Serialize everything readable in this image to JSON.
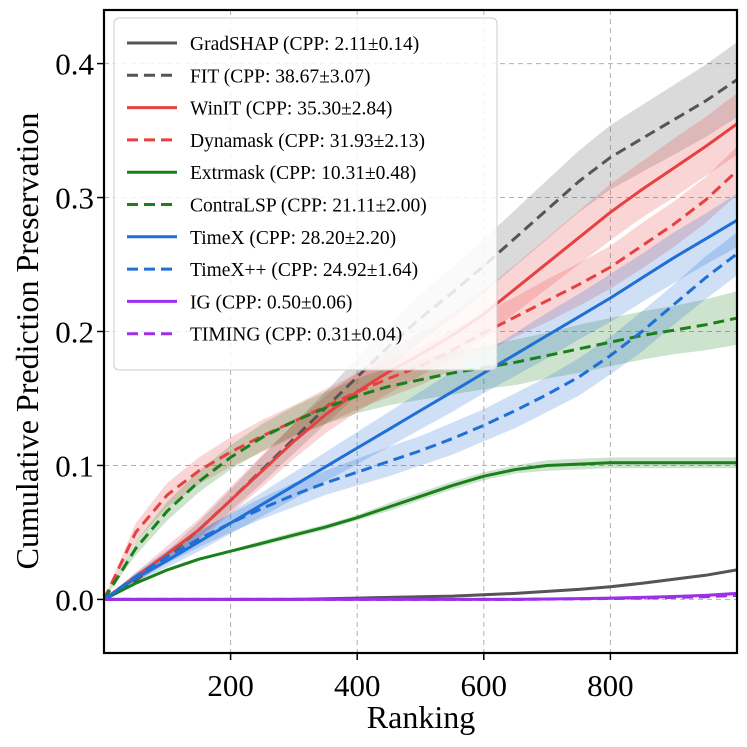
{
  "chart_data": {
    "type": "line",
    "title": "",
    "xlabel": "Ranking",
    "ylabel": "Cumulative Prediction Preservation",
    "xlim": [
      0,
      1000
    ],
    "ylim": [
      -0.04,
      0.44
    ],
    "xticks": [
      200,
      400,
      600,
      800
    ],
    "xtick_labels": [
      "200",
      "400",
      "600",
      "800"
    ],
    "yticks": [
      0.0,
      0.1,
      0.2,
      0.3,
      0.4
    ],
    "ytick_labels": [
      "0.0",
      "0.1",
      "0.2",
      "0.3",
      "0.4"
    ],
    "grid": true,
    "legend_position": "top-left",
    "x": [
      0,
      50,
      100,
      150,
      200,
      250,
      300,
      350,
      400,
      450,
      500,
      550,
      600,
      650,
      700,
      750,
      800,
      850,
      900,
      950,
      1000
    ],
    "series": [
      {
        "name": "GradSHAP (CPP: 2.11±0.14)",
        "color": "#555555",
        "dash": "solid",
        "values": [
          0.0,
          0.0,
          0.0,
          0.0,
          0.0,
          0.0,
          0.0,
          0.0005,
          0.001,
          0.0015,
          0.002,
          0.0025,
          0.0035,
          0.0045,
          0.006,
          0.0075,
          0.0095,
          0.012,
          0.015,
          0.018,
          0.022
        ],
        "band": [
          0.0,
          0.0,
          0.0,
          0.0,
          0.0,
          0.0,
          0.0,
          0.0,
          0.0,
          0.0,
          0.0,
          0.0005,
          0.0005,
          0.0005,
          0.0005,
          0.001,
          0.001,
          0.001,
          0.001,
          0.001,
          0.001
        ]
      },
      {
        "name": "FIT (CPP: 38.67±3.07)",
        "color": "#555555",
        "dash": "dashed",
        "values": [
          0.0,
          0.014,
          0.032,
          0.052,
          0.074,
          0.097,
          0.12,
          0.143,
          0.166,
          0.189,
          0.21,
          0.229,
          0.249,
          0.27,
          0.291,
          0.312,
          0.33,
          0.344,
          0.358,
          0.372,
          0.388
        ],
        "band": [
          0.0,
          0.002,
          0.004,
          0.006,
          0.008,
          0.01,
          0.011,
          0.012,
          0.014,
          0.016,
          0.018,
          0.019,
          0.02,
          0.021,
          0.022,
          0.023,
          0.024,
          0.025,
          0.026,
          0.027,
          0.028
        ]
      },
      {
        "name": "WinIT (CPP: 35.30±2.84)",
        "color": "#e84040",
        "dash": "solid",
        "values": [
          0.0,
          0.017,
          0.034,
          0.052,
          0.074,
          0.096,
          0.118,
          0.138,
          0.155,
          0.17,
          0.183,
          0.197,
          0.213,
          0.232,
          0.251,
          0.27,
          0.289,
          0.306,
          0.322,
          0.338,
          0.355
        ],
        "band": [
          0.0,
          0.003,
          0.006,
          0.008,
          0.01,
          0.012,
          0.013,
          0.014,
          0.015,
          0.016,
          0.016,
          0.017,
          0.018,
          0.018,
          0.019,
          0.02,
          0.021,
          0.021,
          0.022,
          0.022,
          0.023
        ]
      },
      {
        "name": "Dynamask (CPP: 31.93±2.13)",
        "color": "#e84040",
        "dash": "dashed",
        "values": [
          0.0,
          0.05,
          0.078,
          0.096,
          0.11,
          0.122,
          0.133,
          0.144,
          0.155,
          0.165,
          0.174,
          0.186,
          0.199,
          0.211,
          0.223,
          0.235,
          0.248,
          0.264,
          0.28,
          0.298,
          0.32
        ],
        "band": [
          0.0,
          0.007,
          0.009,
          0.01,
          0.011,
          0.012,
          0.012,
          0.013,
          0.013,
          0.014,
          0.014,
          0.015,
          0.015,
          0.015,
          0.016,
          0.016,
          0.016,
          0.017,
          0.017,
          0.017,
          0.018
        ]
      },
      {
        "name": "Extrmask (CPP: 10.31±0.48)",
        "color": "#1b7f1b",
        "dash": "solid",
        "values": [
          0.0,
          0.012,
          0.022,
          0.03,
          0.036,
          0.042,
          0.048,
          0.054,
          0.061,
          0.069,
          0.077,
          0.085,
          0.092,
          0.097,
          0.1,
          0.101,
          0.102,
          0.102,
          0.102,
          0.102,
          0.102
        ],
        "band": [
          0.0,
          0.001,
          0.001,
          0.001,
          0.001,
          0.002,
          0.002,
          0.002,
          0.002,
          0.003,
          0.003,
          0.003,
          0.003,
          0.003,
          0.004,
          0.004,
          0.004,
          0.004,
          0.004,
          0.004,
          0.004
        ]
      },
      {
        "name": "ContraLSP (CPP: 21.11±2.00)",
        "color": "#1b7f1b",
        "dash": "dashed",
        "values": [
          0.0,
          0.038,
          0.066,
          0.088,
          0.106,
          0.121,
          0.133,
          0.143,
          0.152,
          0.159,
          0.164,
          0.169,
          0.173,
          0.177,
          0.182,
          0.187,
          0.192,
          0.197,
          0.201,
          0.205,
          0.21
        ],
        "band": [
          0.0,
          0.005,
          0.007,
          0.008,
          0.009,
          0.01,
          0.011,
          0.012,
          0.013,
          0.014,
          0.015,
          0.016,
          0.016,
          0.017,
          0.017,
          0.018,
          0.018,
          0.018,
          0.018,
          0.019,
          0.02
        ]
      },
      {
        "name": "TimeX (CPP: 28.20±2.20)",
        "color": "#1f6fd6",
        "dash": "solid",
        "values": [
          0.0,
          0.016,
          0.029,
          0.043,
          0.057,
          0.071,
          0.085,
          0.099,
          0.113,
          0.127,
          0.141,
          0.155,
          0.169,
          0.183,
          0.197,
          0.211,
          0.225,
          0.24,
          0.255,
          0.269,
          0.283
        ],
        "band": [
          0.0,
          0.003,
          0.005,
          0.007,
          0.008,
          0.009,
          0.01,
          0.011,
          0.012,
          0.013,
          0.014,
          0.015,
          0.015,
          0.016,
          0.017,
          0.017,
          0.018,
          0.018,
          0.019,
          0.019,
          0.02
        ]
      },
      {
        "name": "TimeX++ (CPP: 24.92±1.64)",
        "color": "#1f6fd6",
        "dash": "dashed",
        "values": [
          0.0,
          0.017,
          0.032,
          0.045,
          0.057,
          0.068,
          0.078,
          0.087,
          0.095,
          0.103,
          0.111,
          0.12,
          0.13,
          0.141,
          0.153,
          0.166,
          0.182,
          0.2,
          0.22,
          0.24,
          0.258
        ],
        "band": [
          0.0,
          0.003,
          0.005,
          0.006,
          0.007,
          0.008,
          0.009,
          0.009,
          0.01,
          0.011,
          0.011,
          0.012,
          0.012,
          0.013,
          0.013,
          0.014,
          0.014,
          0.015,
          0.015,
          0.016,
          0.016
        ]
      },
      {
        "name": "IG (CPP: 0.50±0.06)",
        "color": "#9b30e8",
        "dash": "solid",
        "values": [
          0.0,
          0.0,
          0.0,
          0.0,
          0.0,
          0.0,
          0.0,
          0.0,
          0.0,
          0.0,
          0.0,
          0.0,
          0.0,
          0.0,
          0.0003,
          0.0006,
          0.001,
          0.0015,
          0.0022,
          0.003,
          0.0045
        ],
        "band": [
          0.0,
          0.0,
          0.0,
          0.0,
          0.0,
          0.0,
          0.0,
          0.0,
          0.0,
          0.0,
          0.0,
          0.0,
          0.0,
          0.0,
          0.0,
          0.0,
          0.0,
          0.0003,
          0.0003,
          0.0004,
          0.0005
        ]
      },
      {
        "name": "TIMING (CPP: 0.31±0.04)",
        "color": "#9b30e8",
        "dash": "dashed",
        "values": [
          0.0,
          0.0,
          0.0,
          0.0,
          0.0,
          0.0,
          0.0,
          0.0,
          0.0,
          0.0,
          0.0,
          0.0,
          0.0,
          0.0,
          0.0002,
          0.0004,
          0.0007,
          0.001,
          0.0015,
          0.002,
          0.003
        ],
        "band": [
          0.0,
          0.0,
          0.0,
          0.0,
          0.0,
          0.0,
          0.0,
          0.0,
          0.0,
          0.0,
          0.0,
          0.0,
          0.0,
          0.0,
          0.0,
          0.0,
          0.0,
          0.0002,
          0.0002,
          0.0003,
          0.0004
        ]
      }
    ]
  }
}
